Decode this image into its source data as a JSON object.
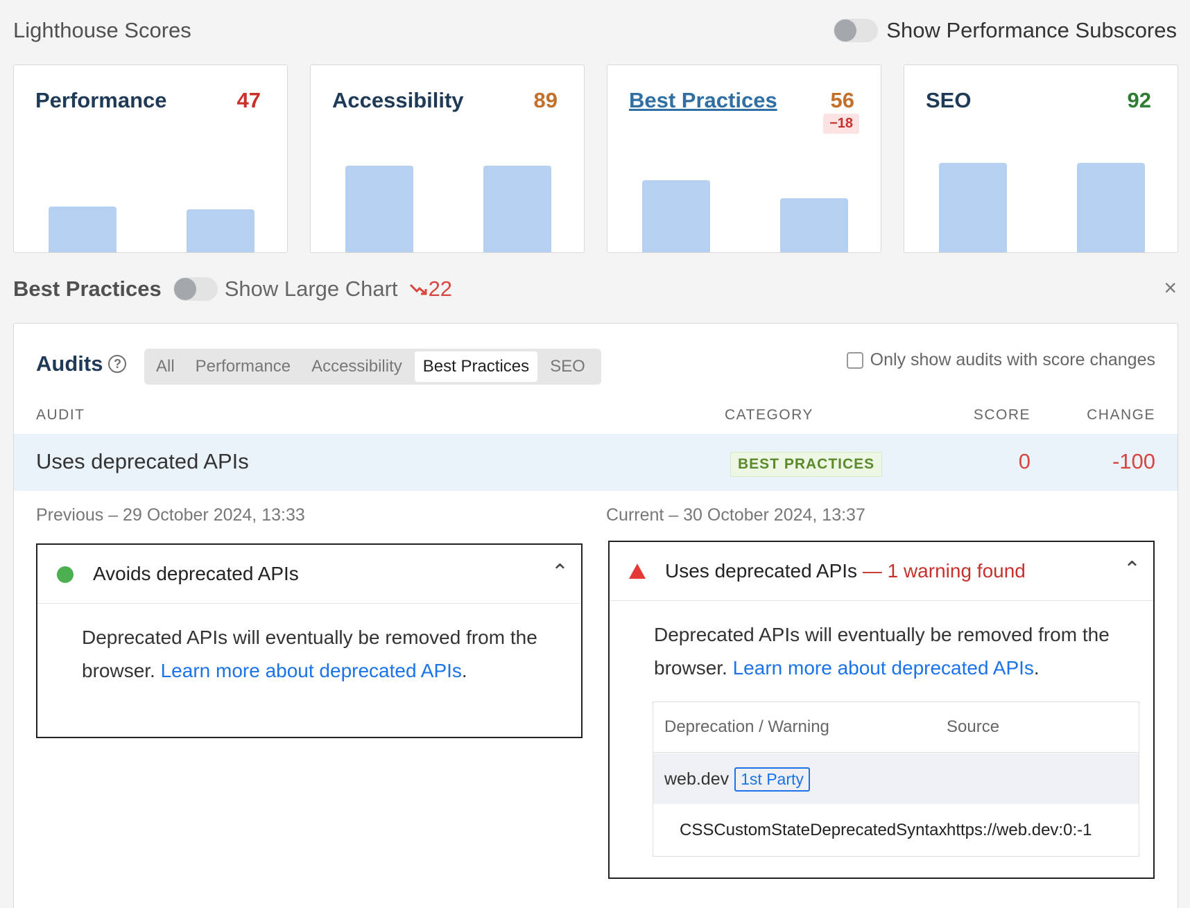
{
  "header": {
    "title": "Lighthouse Scores",
    "subscores_toggle_label": "Show Performance Subscores"
  },
  "score_cards": [
    {
      "name": "Performance",
      "score": "47",
      "color": "#c8312b",
      "bars": [
        0.47,
        0.44
      ]
    },
    {
      "name": "Accessibility",
      "score": "89",
      "color": "#c2702a",
      "bars": [
        0.89,
        0.89
      ]
    },
    {
      "name": "Best Practices",
      "score": "56",
      "delta": "−18",
      "color": "#c2702a",
      "bars": [
        0.74,
        0.56
      ]
    },
    {
      "name": "SEO",
      "score": "92",
      "color": "#2e7d32",
      "bars": [
        0.92,
        0.92
      ]
    }
  ],
  "section": {
    "title": "Best Practices",
    "large_chart_label": "Show Large Chart",
    "trend_value": "22",
    "close_label": "×"
  },
  "audits": {
    "title": "Audits",
    "tabs": [
      "All",
      "Performance",
      "Accessibility",
      "Best Practices",
      "SEO"
    ],
    "active_tab": "Best Practices",
    "only_changes_label": "Only show audits with score changes",
    "columns": {
      "audit": "AUDIT",
      "category": "CATEGORY",
      "score": "SCORE",
      "change": "CHANGE"
    },
    "row": {
      "name": "Uses deprecated APIs",
      "category": "BEST PRACTICES",
      "score": "0",
      "change": "-100"
    }
  },
  "previous": {
    "timestamp": "Previous – 29 October 2024, 13:33",
    "title": "Avoids deprecated APIs",
    "body_text": "Deprecated APIs will eventually be removed from the browser. ",
    "link_text": "Learn more about deprecated APIs",
    "after_link": "."
  },
  "current": {
    "timestamp": "Current – 30 October 2024, 13:37",
    "title": "Uses deprecated APIs",
    "warning": " — 1 warning found",
    "body_text": "Deprecated APIs will eventually be removed from the browser. ",
    "link_text": "Learn more about deprecated APIs",
    "after_link": ".",
    "table": {
      "col_warning": "Deprecation / Warning",
      "col_source": "Source",
      "group_name": "web.dev",
      "group_badge": "1st Party",
      "item_name": "CSSCustomStateDeprecatedSyntax",
      "item_source": "https://web.dev:0:-1"
    }
  }
}
